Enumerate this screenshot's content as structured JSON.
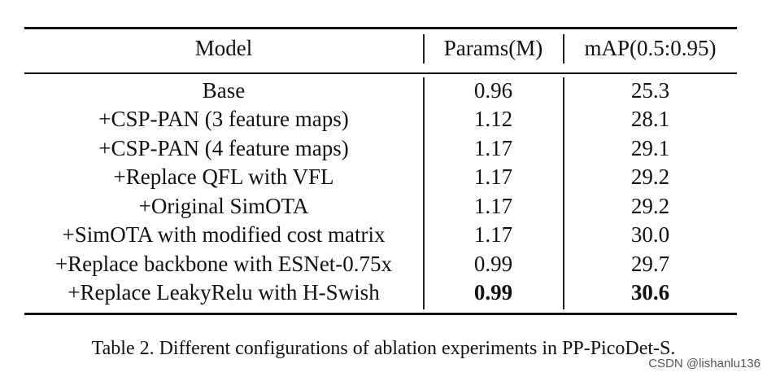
{
  "table": {
    "headers": {
      "model": "Model",
      "params": "Params(M)",
      "map": "mAP(0.5:0.95)"
    },
    "rows": [
      {
        "model": "Base",
        "params": "0.96",
        "map": "25.3",
        "bold": false
      },
      {
        "model": "+CSP-PAN (3 feature maps)",
        "params": "1.12",
        "map": "28.1",
        "bold": false
      },
      {
        "model": "+CSP-PAN (4 feature maps)",
        "params": "1.17",
        "map": "29.1",
        "bold": false
      },
      {
        "model": "+Replace QFL with VFL",
        "params": "1.17",
        "map": "29.2",
        "bold": false
      },
      {
        "model": "+Original SimOTA",
        "params": "1.17",
        "map": "29.2",
        "bold": false
      },
      {
        "model": "+SimOTA with modified cost matrix",
        "params": "1.17",
        "map": "30.0",
        "bold": false
      },
      {
        "model": "+Replace backbone with ESNet-0.75x",
        "params": "0.99",
        "map": "29.7",
        "bold": false
      },
      {
        "model": "+Replace LeakyRelu with H-Swish",
        "params": "0.99",
        "map": "30.6",
        "bold": true
      }
    ]
  },
  "caption": "Table 2. Different configurations of ablation experiments in PP-PicoDet-S.",
  "watermark": "CSDN @lishanlu136"
}
